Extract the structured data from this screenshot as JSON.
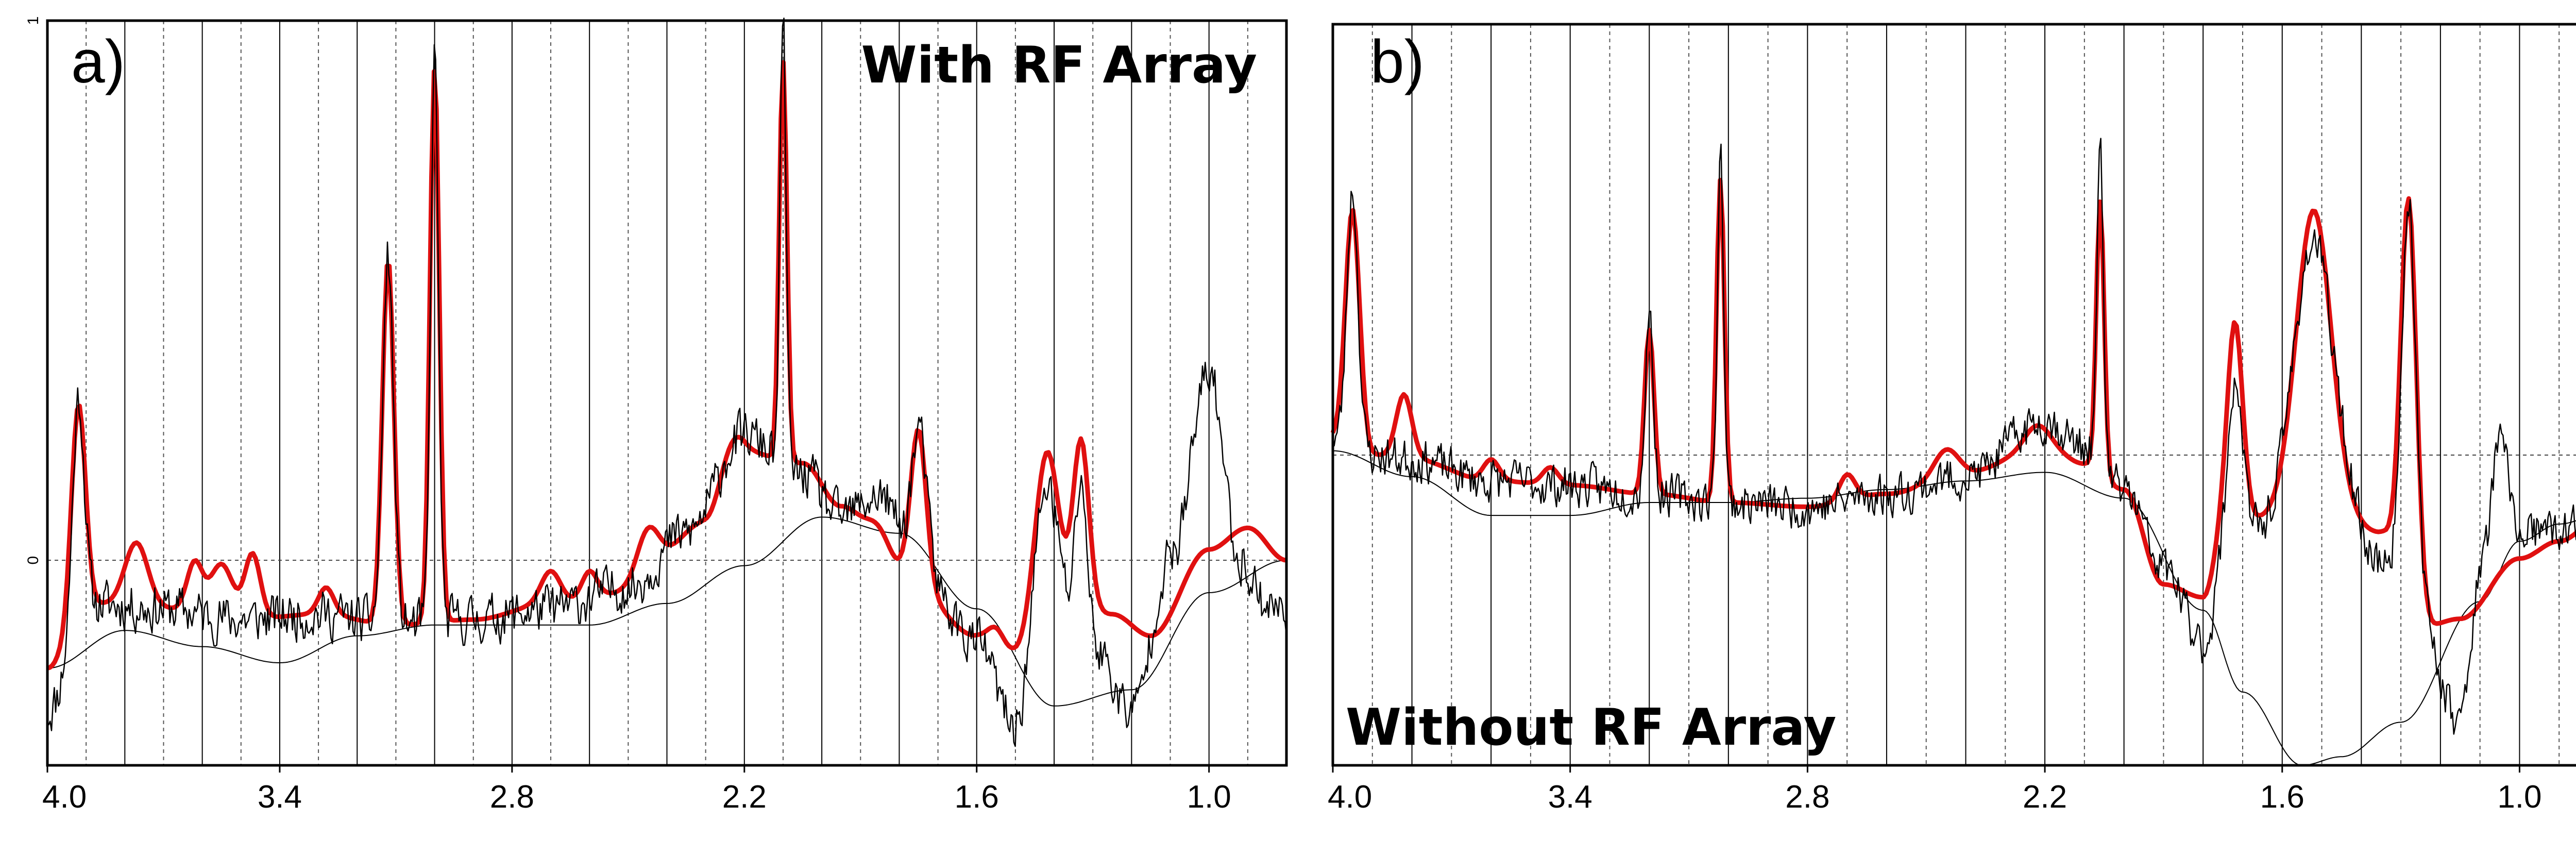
{
  "chart_data": [
    {
      "type": "line",
      "panel_label": "a)",
      "title": "With RF Array",
      "xlabel": "",
      "ylabel": "",
      "x_axis": "ppm (decreasing left to right)",
      "xlim": [
        4.0,
        0.8
      ],
      "ylim": [
        -0.38,
        1.0
      ],
      "x_ticks": [
        4.0,
        3.4,
        2.8,
        2.2,
        1.6,
        1.0
      ],
      "x_tick_labels": [
        "4.0",
        "3.4",
        "2.8",
        "2.2",
        "1.6",
        "1.0"
      ],
      "y_ticks": [
        0,
        1
      ],
      "y_tick_labels": [
        "0",
        "1"
      ],
      "grid_x_solid_step": 0.2,
      "grid_x_dashed_offset": 0.1,
      "dashed_hlines": [
        0
      ],
      "colors": {
        "fit": "#e01010",
        "data": "#000000",
        "baseline": "#000000"
      },
      "series": [
        {
          "name": "baseline",
          "color": "#000000",
          "width": 2,
          "noise": 0,
          "base": [
            [
              4.0,
              -0.2
            ],
            [
              3.8,
              -0.13
            ],
            [
              3.6,
              -0.16
            ],
            [
              3.4,
              -0.19
            ],
            [
              3.2,
              -0.14
            ],
            [
              3.0,
              -0.12
            ],
            [
              2.6,
              -0.12
            ],
            [
              2.4,
              -0.08
            ],
            [
              2.2,
              -0.01
            ],
            [
              2.0,
              0.08
            ],
            [
              1.8,
              0.05
            ],
            [
              1.6,
              -0.09
            ],
            [
              1.4,
              -0.27
            ],
            [
              1.2,
              -0.24
            ],
            [
              1.0,
              -0.06
            ],
            [
              0.8,
              0.0
            ]
          ],
          "peaks": []
        },
        {
          "name": "fit",
          "color": "#e01010",
          "width": 9,
          "noise": 0,
          "base": [
            [
              4.0,
              -0.2
            ],
            [
              3.9,
              -0.08
            ],
            [
              3.7,
              -0.09
            ],
            [
              3.5,
              -0.11
            ],
            [
              3.3,
              -0.1
            ],
            [
              3.1,
              -0.12
            ],
            [
              2.9,
              -0.11
            ],
            [
              2.7,
              -0.08
            ],
            [
              2.5,
              -0.06
            ],
            [
              2.3,
              0.07
            ],
            [
              2.2,
              0.2
            ],
            [
              2.05,
              0.18
            ],
            [
              1.95,
              0.1
            ],
            [
              1.8,
              -0.02
            ],
            [
              1.6,
              -0.14
            ],
            [
              1.5,
              -0.17
            ],
            [
              1.4,
              -0.06
            ],
            [
              1.25,
              -0.1
            ],
            [
              1.15,
              -0.14
            ],
            [
              1.0,
              0.02
            ],
            [
              0.9,
              0.06
            ],
            [
              0.8,
              0.0
            ]
          ],
          "peaks": [
            [
              3.92,
              0.38,
              0.018
            ],
            [
              3.77,
              0.12,
              0.03
            ],
            [
              3.62,
              0.09,
              0.02
            ],
            [
              3.55,
              0.1,
              0.03
            ],
            [
              3.47,
              0.12,
              0.02
            ],
            [
              3.28,
              0.05,
              0.02
            ],
            [
              3.12,
              0.68,
              0.015
            ],
            [
              3.0,
              1.03,
              0.012
            ],
            [
              2.7,
              0.06,
              0.025
            ],
            [
              2.6,
              0.05,
              0.02
            ],
            [
              2.45,
              0.1,
              0.03
            ],
            [
              2.24,
              0.05,
              0.03
            ],
            [
              2.1,
              0.74,
              0.01
            ],
            [
              1.85,
              0.05,
              0.03
            ],
            [
              1.75,
              0.28,
              0.02
            ],
            [
              1.55,
              0.03,
              0.02
            ],
            [
              1.42,
              0.27,
              0.03
            ],
            [
              1.33,
              0.3,
              0.02
            ]
          ]
        },
        {
          "name": "data",
          "color": "#000000",
          "width": 2.5,
          "noise": 0.04,
          "seed": 11,
          "base": [
            [
              4.0,
              -0.28
            ],
            [
              3.9,
              -0.08
            ],
            [
              3.7,
              -0.09
            ],
            [
              3.5,
              -0.11
            ],
            [
              3.3,
              -0.1
            ],
            [
              3.1,
              -0.12
            ],
            [
              2.9,
              -0.11
            ],
            [
              2.7,
              -0.09
            ],
            [
              2.5,
              -0.05
            ],
            [
              2.35,
              0.05
            ],
            [
              2.2,
              0.23
            ],
            [
              2.05,
              0.16
            ],
            [
              1.95,
              0.08
            ],
            [
              1.85,
              0.12
            ],
            [
              1.75,
              -0.02
            ],
            [
              1.6,
              -0.15
            ],
            [
              1.5,
              -0.31
            ],
            [
              1.42,
              -0.08
            ],
            [
              1.3,
              -0.16
            ],
            [
              1.2,
              -0.28
            ],
            [
              1.1,
              0.0
            ],
            [
              1.0,
              0.3
            ],
            [
              0.92,
              0.0
            ],
            [
              0.85,
              -0.08
            ],
            [
              0.8,
              -0.1
            ]
          ],
          "peaks": [
            [
              3.92,
              0.4,
              0.015
            ],
            [
              3.12,
              0.68,
              0.014
            ],
            [
              3.0,
              1.05,
              0.01
            ],
            [
              2.1,
              0.82,
              0.008
            ],
            [
              1.75,
              0.26,
              0.02
            ],
            [
              1.42,
              0.22,
              0.03
            ],
            [
              1.33,
              0.3,
              0.015
            ],
            [
              1.0,
              0.05,
              0.03
            ]
          ]
        }
      ]
    },
    {
      "type": "line",
      "panel_label": "b)",
      "title": "Without RF Array",
      "xlabel": "",
      "ylabel": "",
      "x_axis": "ppm (decreasing left to right)",
      "xlim": [
        4.0,
        0.8
      ],
      "ylim": [
        -0.72,
        1.0
      ],
      "x_ticks": [
        4.0,
        3.4,
        2.8,
        2.2,
        1.6,
        1.0
      ],
      "x_tick_labels": [
        "4.0",
        "3.4",
        "2.8",
        "2.2",
        "1.6",
        "1.0"
      ],
      "y_ticks": [],
      "y_tick_labels": [],
      "grid_x_solid_step": 0.2,
      "grid_x_dashed_offset": 0.1,
      "dashed_hlines": [
        0
      ],
      "colors": {
        "fit": "#e01010",
        "data": "#000000",
        "baseline": "#000000"
      },
      "series": [
        {
          "name": "baseline",
          "color": "#000000",
          "width": 2,
          "noise": 0,
          "base": [
            [
              4.0,
              0.01
            ],
            [
              3.8,
              -0.05
            ],
            [
              3.6,
              -0.14
            ],
            [
              3.4,
              -0.14
            ],
            [
              3.2,
              -0.11
            ],
            [
              3.0,
              -0.11
            ],
            [
              2.8,
              -0.1
            ],
            [
              2.6,
              -0.08
            ],
            [
              2.4,
              -0.06
            ],
            [
              2.2,
              -0.04
            ],
            [
              2.0,
              -0.1
            ],
            [
              1.8,
              -0.36
            ],
            [
              1.7,
              -0.55
            ],
            [
              1.55,
              -0.72
            ],
            [
              1.45,
              -0.7
            ],
            [
              1.3,
              -0.62
            ],
            [
              1.1,
              -0.34
            ],
            [
              1.0,
              -0.2
            ],
            [
              0.9,
              -0.16
            ],
            [
              0.8,
              -0.14
            ]
          ],
          "peaks": []
        },
        {
          "name": "fit",
          "color": "#e01010",
          "width": 9,
          "noise": 0,
          "base": [
            [
              4.0,
              0.04
            ],
            [
              3.9,
              0.0
            ],
            [
              3.8,
              -0.01
            ],
            [
              3.6,
              -0.06
            ],
            [
              3.4,
              -0.07
            ],
            [
              3.2,
              -0.09
            ],
            [
              3.0,
              -0.11
            ],
            [
              2.8,
              -0.12
            ],
            [
              2.6,
              -0.09
            ],
            [
              2.4,
              -0.04
            ],
            [
              2.2,
              0.02
            ],
            [
              2.1,
              -0.02
            ],
            [
              2.0,
              -0.08
            ],
            [
              1.9,
              -0.3
            ],
            [
              1.8,
              -0.33
            ],
            [
              1.75,
              -0.2
            ],
            [
              1.65,
              -0.15
            ],
            [
              1.55,
              -0.15
            ],
            [
              1.45,
              -0.16
            ],
            [
              1.35,
              -0.18
            ],
            [
              1.25,
              -0.4
            ],
            [
              1.15,
              -0.38
            ],
            [
              1.0,
              -0.24
            ],
            [
              0.9,
              -0.2
            ],
            [
              0.8,
              -0.15
            ]
          ],
          "peaks": [
            [
              3.95,
              0.55,
              0.018
            ],
            [
              3.82,
              0.15,
              0.02
            ],
            [
              3.6,
              0.05,
              0.02
            ],
            [
              3.45,
              0.04,
              0.02
            ],
            [
              3.2,
              0.38,
              0.012
            ],
            [
              3.02,
              0.75,
              0.01
            ],
            [
              2.7,
              0.06,
              0.02
            ],
            [
              2.45,
              0.06,
              0.03
            ],
            [
              2.22,
              0.05,
              0.03
            ],
            [
              2.06,
              0.63,
              0.01
            ],
            [
              1.72,
              0.5,
              0.02
            ],
            [
              1.52,
              0.72,
              0.045
            ],
            [
              1.28,
              0.95,
              0.02
            ]
          ]
        },
        {
          "name": "data",
          "color": "#000000",
          "width": 2.5,
          "noise": 0.045,
          "seed": 23,
          "base": [
            [
              4.0,
              0.04
            ],
            [
              3.9,
              0.0
            ],
            [
              3.8,
              -0.01
            ],
            [
              3.6,
              -0.06
            ],
            [
              3.4,
              -0.07
            ],
            [
              3.2,
              -0.09
            ],
            [
              3.0,
              -0.11
            ],
            [
              2.8,
              -0.12
            ],
            [
              2.6,
              -0.09
            ],
            [
              2.4,
              -0.05
            ],
            [
              2.2,
              0.08
            ],
            [
              2.1,
              0.02
            ],
            [
              2.0,
              -0.08
            ],
            [
              1.9,
              -0.26
            ],
            [
              1.8,
              -0.44
            ],
            [
              1.75,
              -0.3
            ],
            [
              1.65,
              -0.18
            ],
            [
              1.55,
              -0.12
            ],
            [
              1.45,
              -0.14
            ],
            [
              1.35,
              -0.25
            ],
            [
              1.25,
              -0.38
            ],
            [
              1.15,
              -0.62
            ],
            [
              1.1,
              -0.28
            ],
            [
              1.05,
              -0.05
            ],
            [
              1.0,
              -0.18
            ],
            [
              0.9,
              -0.18
            ],
            [
              0.8,
              -0.15
            ]
          ],
          "peaks": [
            [
              3.95,
              0.6,
              0.014
            ],
            [
              3.2,
              0.42,
              0.01
            ],
            [
              3.02,
              0.82,
              0.008
            ],
            [
              2.06,
              0.72,
              0.008
            ],
            [
              1.72,
              0.45,
              0.02
            ],
            [
              1.52,
              0.62,
              0.05
            ],
            [
              1.28,
              0.95,
              0.018
            ],
            [
              1.05,
              0.08,
              0.02
            ]
          ]
        }
      ]
    }
  ]
}
